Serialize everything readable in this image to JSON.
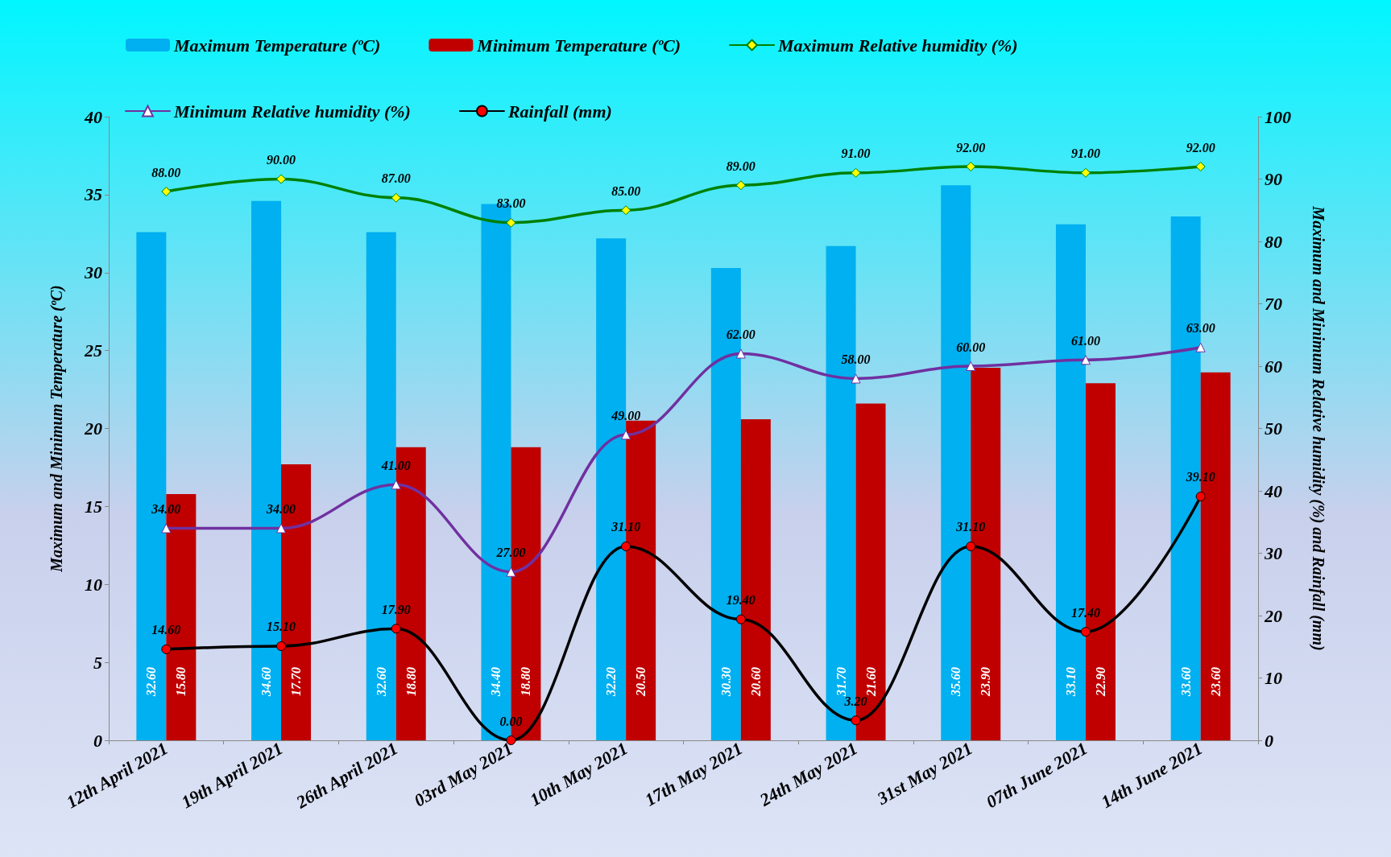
{
  "chart_data": {
    "type": "bar",
    "ylabel": "Maximum and Minimum Temperature (ºC)",
    "y2label": "Maximum and Minimum Relative humidity (%) and Rainfall (mm)",
    "categories": [
      "12th April 2021",
      "19th April 2021",
      "26th April 2021",
      "03rd May 2021",
      "10th May 2021",
      "17th May 2021",
      "24th May 2021",
      "31st May 2021",
      "07th June 2021",
      "14th June 2021"
    ],
    "series": [
      {
        "name": "Maximum Temperature (ºC)",
        "color": "#00b0f0",
        "values": [
          32.6,
          34.6,
          32.6,
          34.4,
          32.2,
          30.3,
          31.7,
          35.6,
          33.1,
          33.6
        ],
        "value_labels": [
          "32.60",
          "34.60",
          "32.60",
          "34.40",
          "32.20",
          "30.30",
          "31.70",
          "35.60",
          "33.10",
          "33.60"
        ]
      },
      {
        "name": "Minimum Temperature (ºC)",
        "color": "#c00000",
        "values": [
          15.8,
          17.7,
          18.8,
          18.8,
          20.5,
          20.6,
          21.6,
          23.9,
          22.9,
          23.6
        ],
        "value_labels": [
          "15.80",
          "17.70",
          "18.80",
          "18.80",
          "20.50",
          "20.60",
          "21.60",
          "23.90",
          "22.90",
          "23.60"
        ]
      },
      {
        "name": "Maximum Relative humidity (%)",
        "type": "line",
        "axis": "y2",
        "marker": "diamond",
        "color": "#008000",
        "values": [
          88,
          90,
          87,
          83,
          85,
          89,
          91,
          92,
          91,
          92
        ],
        "value_labels": [
          "88.00",
          "90.00",
          "87.00",
          "83.00",
          "85.00",
          "89.00",
          "91.00",
          "92.00",
          "91.00",
          "92.00"
        ]
      },
      {
        "name": "Minimum Relative humidity (%)",
        "type": "line",
        "axis": "y2",
        "marker": "triangle",
        "color": "#7030a0",
        "values": [
          34,
          34,
          41,
          27,
          49,
          62,
          58,
          60,
          61,
          63
        ],
        "value_labels": [
          "34.00",
          "34.00",
          "41.00",
          "27.00",
          "49.00",
          "62.00",
          "58.00",
          "60.00",
          "61.00",
          "63.00"
        ]
      },
      {
        "name": "Rainfall (mm)",
        "type": "line",
        "axis": "y2",
        "marker": "circle",
        "color": "#000000",
        "values": [
          14.6,
          15.1,
          17.9,
          0,
          31.1,
          19.4,
          3.2,
          31.1,
          17.4,
          39.1
        ],
        "value_labels": [
          "14.60",
          "15.10",
          "17.90",
          "0.00",
          "31.10",
          "19.40",
          "3.20",
          "31.10",
          "17.40",
          "39.10"
        ]
      }
    ],
    "ylim": [
      0,
      40
    ],
    "yticks": [
      0,
      5,
      10,
      15,
      20,
      25,
      30,
      35,
      40
    ],
    "y2lim": [
      0,
      100
    ],
    "y2ticks": [
      0,
      10,
      20,
      30,
      40,
      50,
      60,
      70,
      80,
      90,
      100
    ],
    "grid": false,
    "legend": "top",
    "line_style": "solid"
  }
}
